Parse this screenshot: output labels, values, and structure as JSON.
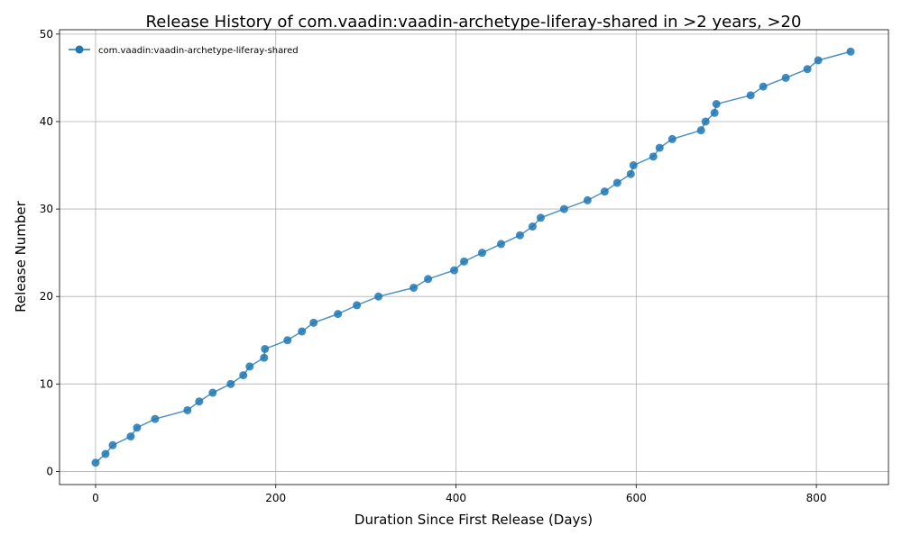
{
  "chart_data": {
    "type": "line",
    "title": "Release History of com.vaadin:vaadin-archetype-liferay-shared in >2 years, >20",
    "xlabel": "Duration Since First Release (Days)",
    "ylabel": "Release Number",
    "xlim": [
      -40,
      880
    ],
    "ylim": [
      -1.5,
      50.5
    ],
    "xticks": [
      0,
      200,
      400,
      600,
      800
    ],
    "yticks": [
      0,
      10,
      20,
      30,
      40,
      50
    ],
    "grid": true,
    "legend_position": "top-left",
    "colors": {
      "series": "#1f77b4"
    },
    "series": [
      {
        "name": "com.vaadin:vaadin-archetype-liferay-shared",
        "x": [
          0,
          11,
          19,
          39,
          46,
          66,
          102,
          115,
          130,
          150,
          164,
          171,
          187,
          188,
          213,
          229,
          242,
          269,
          290,
          314,
          353,
          369,
          398,
          409,
          429,
          450,
          471,
          485,
          494,
          520,
          546,
          565,
          579,
          594,
          597,
          619,
          626,
          640,
          672,
          677,
          687,
          689,
          727,
          741,
          766,
          790,
          802,
          838
        ],
        "y": [
          1,
          2,
          3,
          4,
          5,
          6,
          7,
          8,
          9,
          10,
          11,
          12,
          13,
          14,
          15,
          16,
          17,
          18,
          19,
          20,
          21,
          22,
          23,
          24,
          25,
          26,
          27,
          28,
          29,
          30,
          31,
          32,
          33,
          34,
          35,
          36,
          37,
          38,
          39,
          40,
          41,
          42,
          43,
          44,
          45,
          46,
          47,
          48
        ]
      }
    ]
  }
}
